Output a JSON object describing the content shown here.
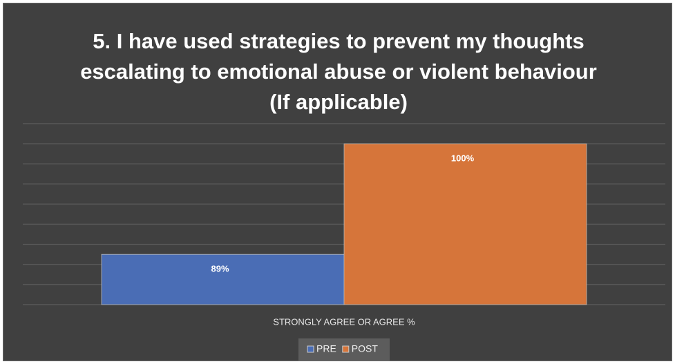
{
  "chart_data": {
    "type": "bar",
    "title": "5. I have used strategies to prevent my thoughts escalating to emotional abuse or violent behaviour (If applicable)",
    "categories": [
      "STRONGLY AGREE OR AGREE %"
    ],
    "series": [
      {
        "name": "PRE",
        "color": "#4a6db5",
        "values": [
          89
        ],
        "value_labels": [
          "89%"
        ]
      },
      {
        "name": "POST",
        "color": "#d6753a",
        "values": [
          100
        ],
        "value_labels": [
          "100%"
        ]
      }
    ],
    "ylim": [
      84,
      102
    ],
    "yticks": [
      84,
      86,
      88,
      90,
      92,
      94,
      96,
      98,
      100,
      102
    ],
    "grid": true,
    "legend": "bottom"
  }
}
